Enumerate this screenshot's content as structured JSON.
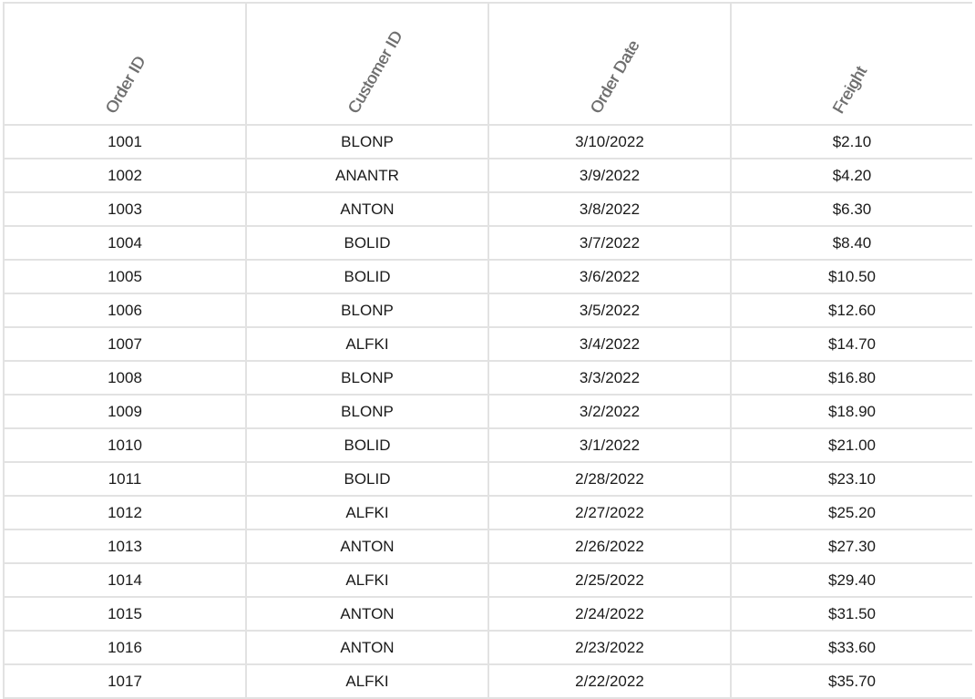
{
  "columns": {
    "order_id": "Order ID",
    "customer_id": "Customer ID",
    "order_date": "Order Date",
    "freight": "Freight"
  },
  "rows": [
    {
      "order_id": "1001",
      "customer_id": "BLONP",
      "order_date": "3/10/2022",
      "freight": "$2.10"
    },
    {
      "order_id": "1002",
      "customer_id": "ANANTR",
      "order_date": "3/9/2022",
      "freight": "$4.20"
    },
    {
      "order_id": "1003",
      "customer_id": "ANTON",
      "order_date": "3/8/2022",
      "freight": "$6.30"
    },
    {
      "order_id": "1004",
      "customer_id": "BOLID",
      "order_date": "3/7/2022",
      "freight": "$8.40"
    },
    {
      "order_id": "1005",
      "customer_id": "BOLID",
      "order_date": "3/6/2022",
      "freight": "$10.50"
    },
    {
      "order_id": "1006",
      "customer_id": "BLONP",
      "order_date": "3/5/2022",
      "freight": "$12.60"
    },
    {
      "order_id": "1007",
      "customer_id": "ALFKI",
      "order_date": "3/4/2022",
      "freight": "$14.70"
    },
    {
      "order_id": "1008",
      "customer_id": "BLONP",
      "order_date": "3/3/2022",
      "freight": "$16.80"
    },
    {
      "order_id": "1009",
      "customer_id": "BLONP",
      "order_date": "3/2/2022",
      "freight": "$18.90"
    },
    {
      "order_id": "1010",
      "customer_id": "BOLID",
      "order_date": "3/1/2022",
      "freight": "$21.00"
    },
    {
      "order_id": "1011",
      "customer_id": "BOLID",
      "order_date": "2/28/2022",
      "freight": "$23.10"
    },
    {
      "order_id": "1012",
      "customer_id": "ALFKI",
      "order_date": "2/27/2022",
      "freight": "$25.20"
    },
    {
      "order_id": "1013",
      "customer_id": "ANTON",
      "order_date": "2/26/2022",
      "freight": "$27.30"
    },
    {
      "order_id": "1014",
      "customer_id": "ALFKI",
      "order_date": "2/25/2022",
      "freight": "$29.40"
    },
    {
      "order_id": "1015",
      "customer_id": "ANTON",
      "order_date": "2/24/2022",
      "freight": "$31.50"
    },
    {
      "order_id": "1016",
      "customer_id": "ANTON",
      "order_date": "2/23/2022",
      "freight": "$33.60"
    },
    {
      "order_id": "1017",
      "customer_id": "ALFKI",
      "order_date": "2/22/2022",
      "freight": "$35.70"
    }
  ]
}
